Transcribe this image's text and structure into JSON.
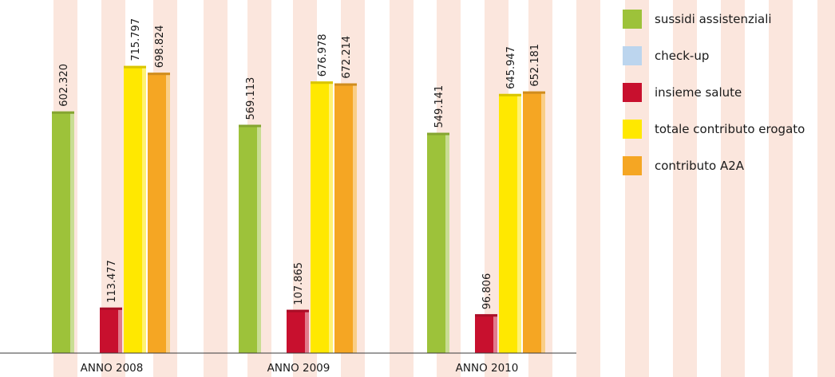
{
  "chart_data": {
    "type": "bar",
    "title": "",
    "xlabel": "",
    "ylabel": "",
    "categories": [
      "ANNO 2008",
      "ANNO 2009",
      "ANNO 2010"
    ],
    "series": [
      {
        "name": "sussidi assistenziali",
        "color": "#9dc23a",
        "values": [
          602320,
          569113,
          549141
        ],
        "labels": [
          "602.320",
          "569.113",
          "549.141"
        ]
      },
      {
        "name": "check-up",
        "color": "#bcd5ee",
        "values": [
          null,
          null,
          null
        ],
        "labels": [
          null,
          null,
          null
        ]
      },
      {
        "name": "insieme salute",
        "color": "#c8102e",
        "values": [
          113477,
          107865,
          96806
        ],
        "labels": [
          "113.477",
          "107.865",
          "96.806"
        ]
      },
      {
        "name": "totale contributo erogato",
        "color": "#ffe800",
        "values": [
          715797,
          676978,
          645947
        ],
        "labels": [
          "715.797",
          "676.978",
          "645.947"
        ]
      },
      {
        "name": "contributo A2A",
        "color": "#f5a623",
        "values": [
          698824,
          672214,
          652181
        ],
        "labels": [
          "698.824",
          "672.214",
          "652.181"
        ]
      }
    ],
    "ylim": [
      0,
      880000
    ],
    "grid": false,
    "legend_position": "right",
    "background_stripe_color": "#fbe6dd"
  }
}
